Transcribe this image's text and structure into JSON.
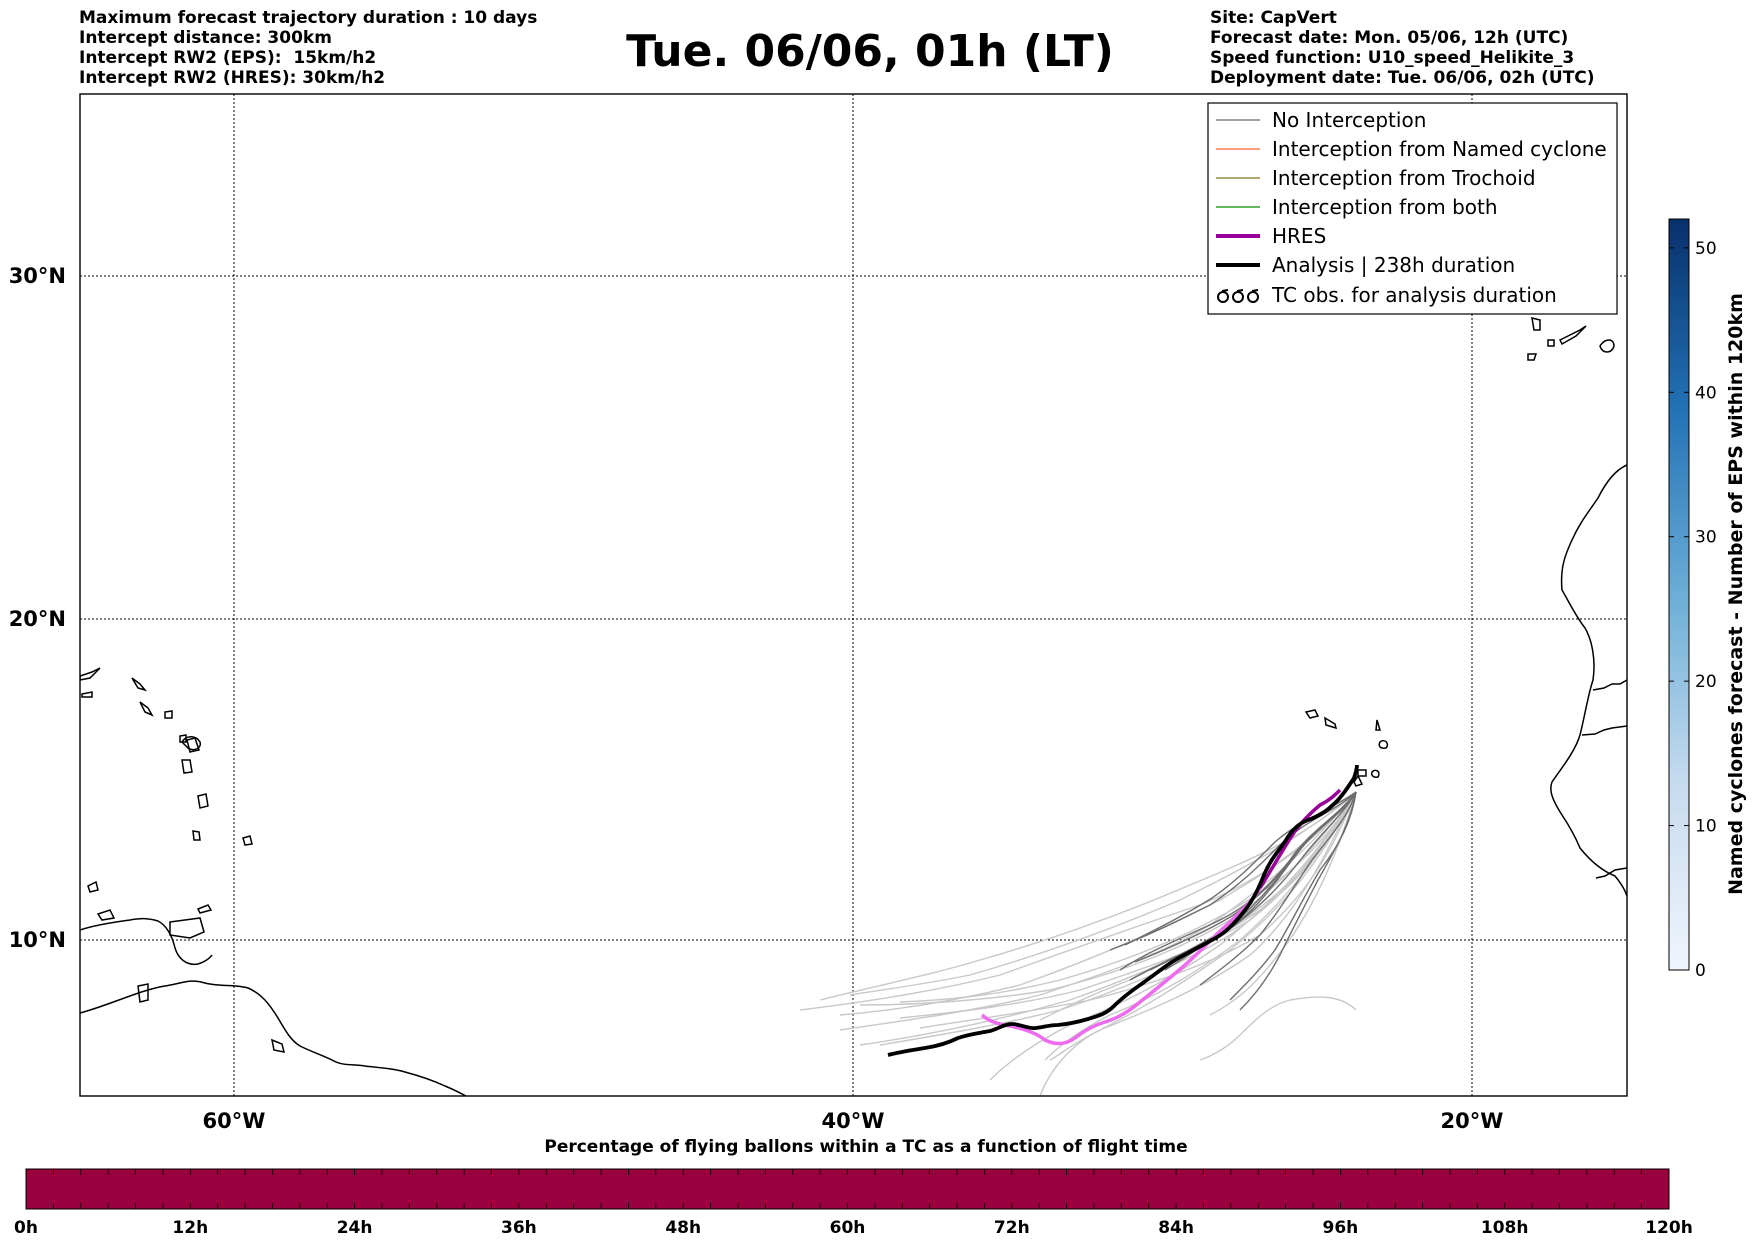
{
  "header": {
    "left_lines": [
      "Maximum forecast trajectory duration : 10 days",
      "Intercept distance: 300km",
      "Intercept RW2 (EPS):  15km/h2",
      "Intercept RW2 (HRES): 30km/h2"
    ],
    "title": "Tue. 06/06, 01h (LT)",
    "right_lines": [
      "Site: CapVert",
      "Forecast date: Mon. 05/06, 12h (UTC)",
      "Speed function: U10_speed_Helikite_3",
      "Deployment date: Tue. 06/06, 02h (UTC)"
    ]
  },
  "map": {
    "lat_labels": [
      "30°N",
      "20°N",
      "10°N"
    ],
    "lon_labels": [
      "60°W",
      "40°W",
      "20°W"
    ],
    "lat_values": [
      30,
      20,
      10
    ],
    "lon_values": [
      -60,
      -40,
      -20
    ]
  },
  "legend": {
    "entries": [
      {
        "label": "No Interception",
        "color": "#808080",
        "style": "thin"
      },
      {
        "label": "Interception from Named cyclone",
        "color": "#ff7f50",
        "style": "thin"
      },
      {
        "label": "Interception from Trochoid",
        "color": "#9a8a3a",
        "style": "thin"
      },
      {
        "label": "Interception from both",
        "color": "#2ca02c",
        "style": "thin"
      },
      {
        "label": "HRES",
        "color": "#990099",
        "style": "thick"
      },
      {
        "label": "Analysis | 238h duration",
        "color": "#000000",
        "style": "thick"
      },
      {
        "label": "TC obs. for analysis duration",
        "color": "#000000",
        "style": "tc-symbol"
      }
    ]
  },
  "colorbar": {
    "label": "Named cyclones forecast - Number of EPS within 120km",
    "ticks": [
      "0",
      "10",
      "20",
      "30",
      "40",
      "50"
    ],
    "tick_values": [
      0,
      10,
      20,
      30,
      40,
      50
    ],
    "max": 52,
    "color_low": "#f0f5fc",
    "color_high": "#08306b"
  },
  "bottom_bar": {
    "title": "Percentage of flying ballons within a TC as a function of flight time",
    "ticks": [
      "0h",
      "12h",
      "24h",
      "36h",
      "48h",
      "60h",
      "72h",
      "84h",
      "96h",
      "108h",
      "120h"
    ],
    "color": "#99003d"
  },
  "colors": {
    "eps_light": "#c8c8c8",
    "eps_dark": "#666666",
    "hres": "#ee6aee",
    "analysis": "#000000"
  }
}
